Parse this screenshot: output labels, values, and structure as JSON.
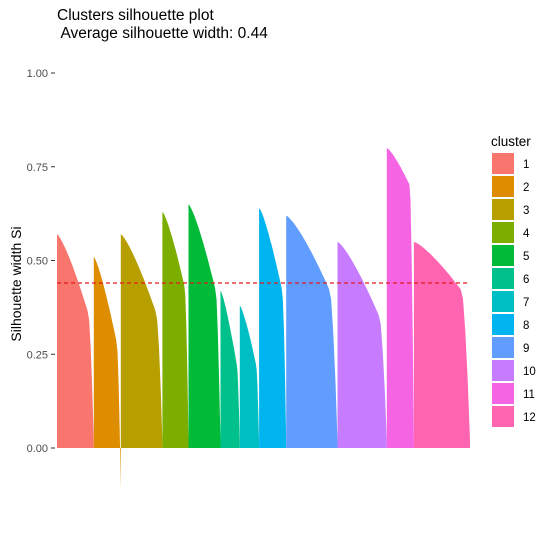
{
  "chart_data": {
    "type": "silhouette",
    "title": "Clusters silhouette plot",
    "subtitle": " Average silhouette width: 0.44",
    "ylabel": "Silhouette width Si",
    "xlabel": "",
    "ylim": [
      -0.1,
      1.0
    ],
    "yticks": [
      "0.00",
      "0.25",
      "0.50",
      "0.75",
      "1.00"
    ],
    "ytick_values": [
      0,
      0.25,
      0.5,
      0.75,
      1.0
    ],
    "average_line": {
      "value": 0.44,
      "color": "#e41a1c",
      "style": "dashed"
    },
    "legend": {
      "title": "cluster",
      "position": "right"
    },
    "clusters": [
      {
        "name": "1",
        "color": "#F8766D",
        "size": 38,
        "max": 0.57,
        "mid": 0.36,
        "min": 0.02
      },
      {
        "name": "2",
        "color": "#DE8C00",
        "size": 28,
        "max": 0.51,
        "mid": 0.28,
        "min": -0.11
      },
      {
        "name": "3",
        "color": "#B79F00",
        "size": 43,
        "max": 0.57,
        "mid": 0.36,
        "min": 0.02
      },
      {
        "name": "4",
        "color": "#7CAE00",
        "size": 27,
        "max": 0.63,
        "mid": 0.43,
        "min": 0.02
      },
      {
        "name": "5",
        "color": "#00BA38",
        "size": 33,
        "max": 0.65,
        "mid": 0.42,
        "min": 0.02
      },
      {
        "name": "6",
        "color": "#00C08B",
        "size": 20,
        "max": 0.42,
        "mid": 0.22,
        "min": 0.01
      },
      {
        "name": "7",
        "color": "#00BFC4",
        "size": 20,
        "max": 0.38,
        "mid": 0.22,
        "min": 0.01
      },
      {
        "name": "8",
        "color": "#00B4F0",
        "size": 28,
        "max": 0.64,
        "mid": 0.42,
        "min": 0.02
      },
      {
        "name": "9",
        "color": "#619CFF",
        "size": 53,
        "max": 0.62,
        "mid": 0.42,
        "min": 0.02
      },
      {
        "name": "10",
        "color": "#C77CFF",
        "size": 51,
        "max": 0.55,
        "mid": 0.35,
        "min": 0.02
      },
      {
        "name": "11",
        "color": "#F564E3",
        "size": 28,
        "max": 0.8,
        "mid": 0.7,
        "min": 0.02
      },
      {
        "name": "12",
        "color": "#FF64B0",
        "size": 58,
        "max": 0.55,
        "mid": 0.42,
        "min": 0.02
      }
    ]
  }
}
